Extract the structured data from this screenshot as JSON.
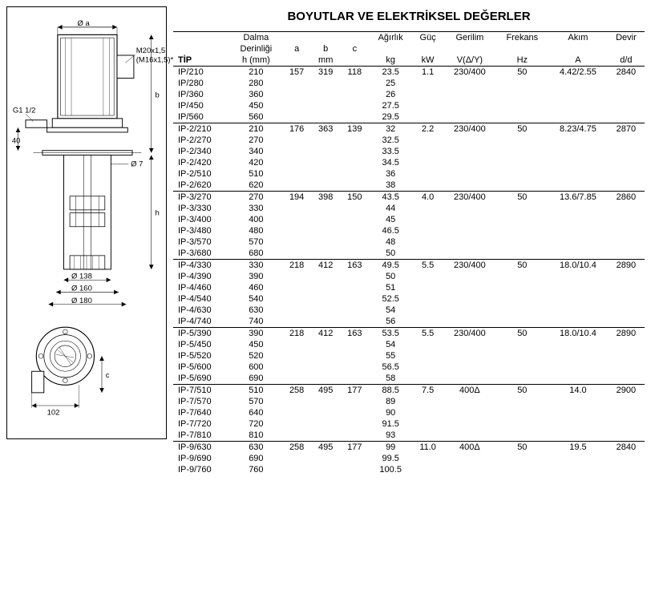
{
  "title": "BOYUTLAR VE ELEKTRİKSEL DEĞERLER",
  "headers": {
    "tip": "TİP",
    "dalma1": "Dalma",
    "dalma2": "Derinliği",
    "dalma3": "h (mm)",
    "a": "a",
    "b": "b",
    "c": "c",
    "mm": "mm",
    "agirlik": "Ağırlık",
    "kg": "kg",
    "guc": "Güç",
    "kw": "kW",
    "gerilim": "Gerilim",
    "vdy": "V(Δ/Y)",
    "frekans": "Frekans",
    "hz": "Hz",
    "akim": "Akım",
    "amp": "A",
    "devir": "Devir",
    "dd": "d/d"
  },
  "diagram_labels": {
    "top_dia": "Ø a",
    "thread1": "M20x1,5",
    "thread2": "(M16x1,5)*",
    "g_thread": "G1 1/2",
    "dim40": "40",
    "dim7": "Ø 7",
    "dim_b": "b",
    "dim_h": "h",
    "dia138": "Ø 138",
    "dia160": "Ø 160",
    "dia180": "Ø 180",
    "dim102": "102",
    "dim_c": "c"
  },
  "groups": [
    {
      "a": "157",
      "b": "319",
      "c": "118",
      "kw": "1.1",
      "v": "230/400",
      "hz": "50",
      "amp": "4.42/2.55",
      "dd": "2840",
      "rows": [
        {
          "tip": "IP/210",
          "h": "210",
          "kg": "23.5"
        },
        {
          "tip": "IP/280",
          "h": "280",
          "kg": "25"
        },
        {
          "tip": "IP/360",
          "h": "360",
          "kg": "26"
        },
        {
          "tip": "IP/450",
          "h": "450",
          "kg": "27.5"
        },
        {
          "tip": "IP/560",
          "h": "560",
          "kg": "29.5"
        }
      ]
    },
    {
      "a": "176",
      "b": "363",
      "c": "139",
      "kw": "2.2",
      "v": "230/400",
      "hz": "50",
      "amp": "8.23/4.75",
      "dd": "2870",
      "rows": [
        {
          "tip": "IP-2/210",
          "h": "210",
          "kg": "32"
        },
        {
          "tip": "IP-2/270",
          "h": "270",
          "kg": "32.5"
        },
        {
          "tip": "IP-2/340",
          "h": "340",
          "kg": "33.5"
        },
        {
          "tip": "IP-2/420",
          "h": "420",
          "kg": "34.5"
        },
        {
          "tip": "IP-2/510",
          "h": "510",
          "kg": "36"
        },
        {
          "tip": "IP-2/620",
          "h": "620",
          "kg": "38"
        }
      ]
    },
    {
      "a": "194",
      "b": "398",
      "c": "150",
      "kw": "4.0",
      "v": "230/400",
      "hz": "50",
      "amp": "13.6/7.85",
      "dd": "2860",
      "rows": [
        {
          "tip": "IP-3/270",
          "h": "270",
          "kg": "43.5"
        },
        {
          "tip": "IP-3/330",
          "h": "330",
          "kg": "44"
        },
        {
          "tip": "IP-3/400",
          "h": "400",
          "kg": "45"
        },
        {
          "tip": "IP-3/480",
          "h": "480",
          "kg": "46.5"
        },
        {
          "tip": "IP-3/570",
          "h": "570",
          "kg": "48"
        },
        {
          "tip": "IP-3/680",
          "h": "680",
          "kg": "50"
        }
      ]
    },
    {
      "a": "218",
      "b": "412",
      "c": "163",
      "kw": "5.5",
      "v": "230/400",
      "hz": "50",
      "amp": "18.0/10.4",
      "dd": "2890",
      "rows": [
        {
          "tip": "IP-4/330",
          "h": "330",
          "kg": "49.5"
        },
        {
          "tip": "IP-4/390",
          "h": "390",
          "kg": "50"
        },
        {
          "tip": "IP-4/460",
          "h": "460",
          "kg": "51"
        },
        {
          "tip": "IP-4/540",
          "h": "540",
          "kg": "52.5"
        },
        {
          "tip": "IP-4/630",
          "h": "630",
          "kg": "54"
        },
        {
          "tip": "IP-4/740",
          "h": "740",
          "kg": "56"
        }
      ]
    },
    {
      "a": "218",
      "b": "412",
      "c": "163",
      "kw": "5.5",
      "v": "230/400",
      "hz": "50",
      "amp": "18.0/10.4",
      "dd": "2890",
      "rows": [
        {
          "tip": "IP-5/390",
          "h": "390",
          "kg": "53.5"
        },
        {
          "tip": "IP-5/450",
          "h": "450",
          "kg": "54"
        },
        {
          "tip": "IP-5/520",
          "h": "520",
          "kg": "55"
        },
        {
          "tip": "IP-5/600",
          "h": "600",
          "kg": "56.5"
        },
        {
          "tip": "IP-5/690",
          "h": "690",
          "kg": "58"
        }
      ]
    },
    {
      "a": "258",
      "b": "495",
      "c": "177",
      "kw": "7.5",
      "v": "400Δ",
      "hz": "50",
      "amp": "14.0",
      "dd": "2900",
      "rows": [
        {
          "tip": "IP-7/510",
          "h": "510",
          "kg": "88.5"
        },
        {
          "tip": "IP-7/570",
          "h": "570",
          "kg": "89"
        },
        {
          "tip": "IP-7/640",
          "h": "640",
          "kg": "90"
        },
        {
          "tip": "IP-7/720",
          "h": "720",
          "kg": "91.5"
        },
        {
          "tip": "IP-7/810",
          "h": "810",
          "kg": "93"
        }
      ]
    },
    {
      "a": "258",
      "b": "495",
      "c": "177",
      "kw": "11.0",
      "v": "400Δ",
      "hz": "50",
      "amp": "19.5",
      "dd": "2840",
      "rows": [
        {
          "tip": "IP-9/630",
          "h": "630",
          "kg": "99"
        },
        {
          "tip": "IP-9/690",
          "h": "690",
          "kg": "99.5"
        },
        {
          "tip": "IP-9/760",
          "h": "760",
          "kg": "100.5"
        }
      ]
    }
  ]
}
